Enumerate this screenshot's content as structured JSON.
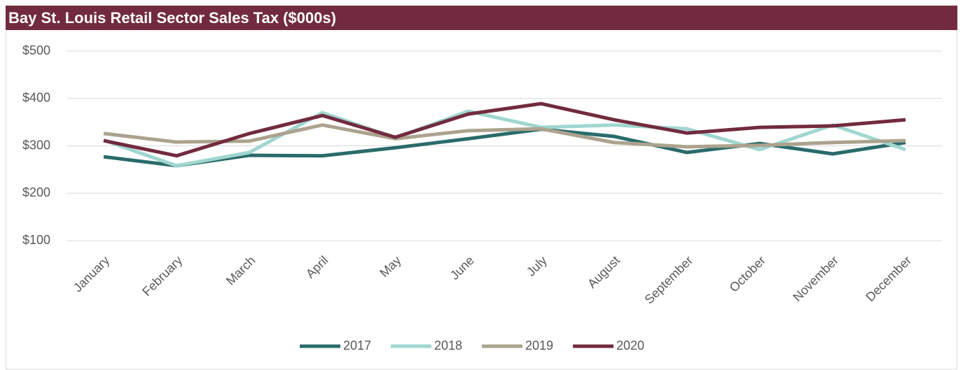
{
  "chart_data": {
    "type": "line",
    "title": "Bay St. Louis Retail Sector Sales Tax ($000s)",
    "categories": [
      "January",
      "February",
      "March",
      "April",
      "May",
      "June",
      "July",
      "August",
      "September",
      "October",
      "November",
      "December"
    ],
    "series": [
      {
        "name": "2017",
        "color": "#2a6b6b",
        "values": [
          277,
          258,
          280,
          279,
          296,
          315,
          335,
          320,
          286,
          305,
          283,
          307
        ]
      },
      {
        "name": "2018",
        "color": "#9fd6d0",
        "values": [
          312,
          258,
          286,
          370,
          317,
          373,
          339,
          344,
          336,
          292,
          344,
          292
        ]
      },
      {
        "name": "2019",
        "color": "#aca38e",
        "values": [
          326,
          308,
          310,
          344,
          315,
          332,
          336,
          307,
          298,
          301,
          307,
          311
        ]
      },
      {
        "name": "2020",
        "color": "#722b3e",
        "values": [
          311,
          279,
          326,
          364,
          318,
          367,
          389,
          355,
          327,
          339,
          342,
          355
        ]
      }
    ],
    "ylim": [
      100,
      500
    ],
    "yticks": [
      {
        "value": 100,
        "label": "$100"
      },
      {
        "value": 200,
        "label": "$200"
      },
      {
        "value": 300,
        "label": "$300"
      },
      {
        "value": 400,
        "label": "$400"
      },
      {
        "value": 500,
        "label": "$500"
      }
    ],
    "grid": true,
    "legend": "bottom"
  }
}
